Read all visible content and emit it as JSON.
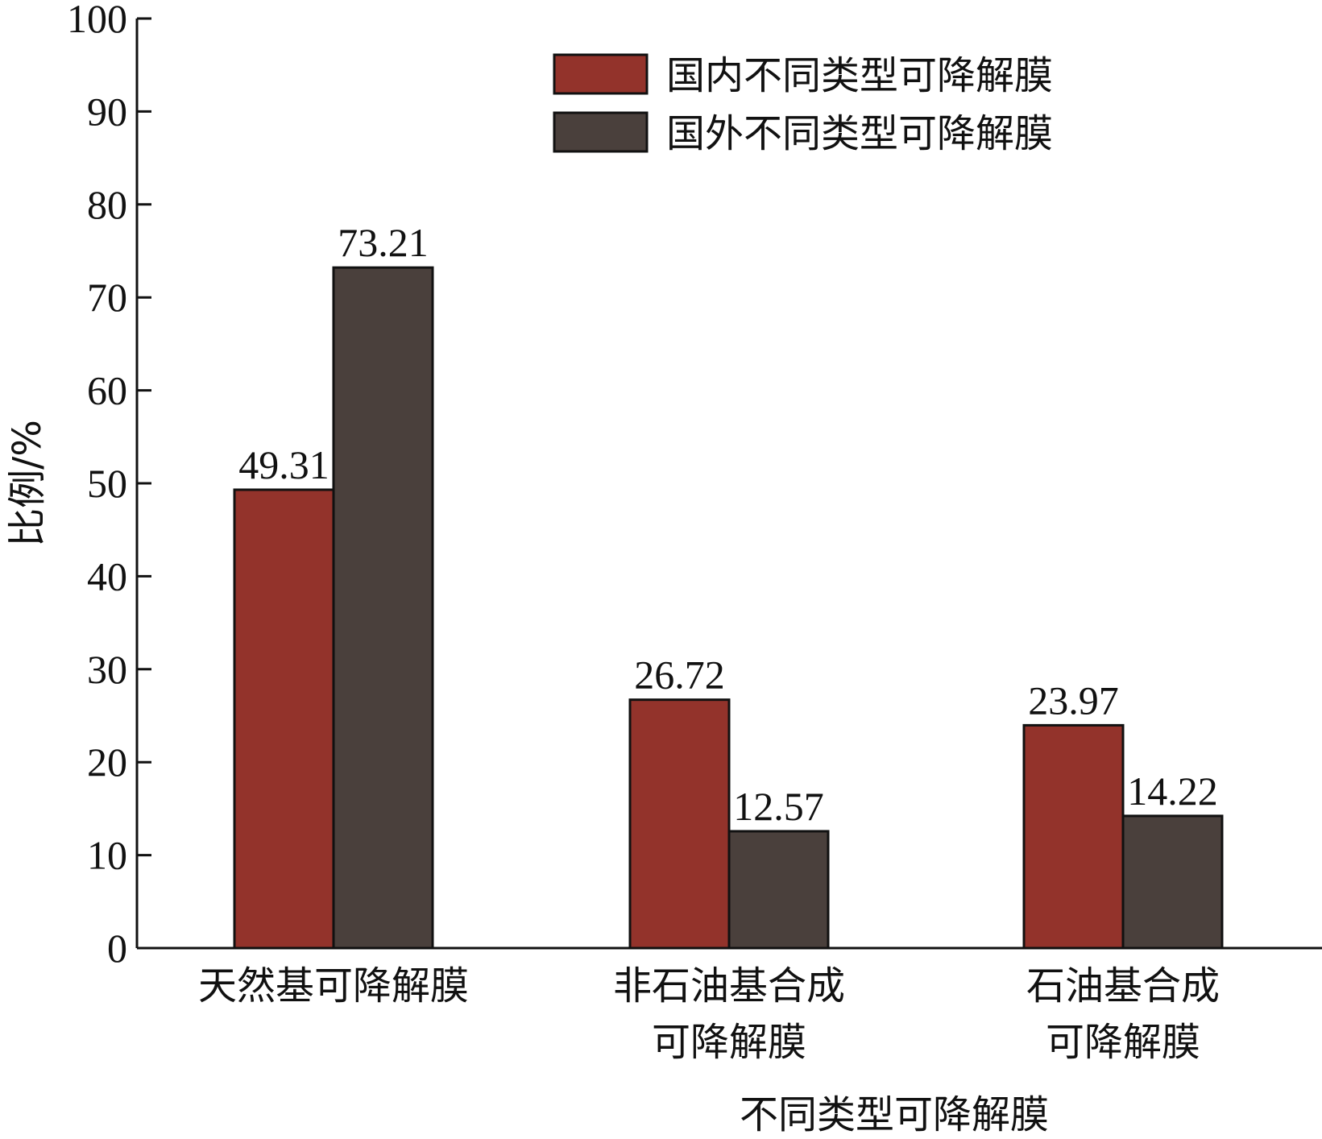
{
  "chart_data": {
    "type": "bar",
    "x_label": "不同类型可降解膜",
    "y_label": "比例/%",
    "categories": [
      "天然基可降解膜",
      "非石油基合成\n可降解膜",
      "石油基合成\n可降解膜"
    ],
    "series": [
      {
        "name": "国内不同类型可降解膜",
        "color": "#93332b",
        "values": [
          49.31,
          26.72,
          23.97
        ]
      },
      {
        "name": "国外不同类型可降解膜",
        "color": "#4a403c",
        "values": [
          73.21,
          12.57,
          14.22
        ]
      }
    ],
    "ylim": [
      0,
      100
    ],
    "yticks": [
      0,
      10,
      20,
      30,
      40,
      50,
      60,
      70,
      80,
      90,
      100
    ],
    "legend": "upper right"
  }
}
